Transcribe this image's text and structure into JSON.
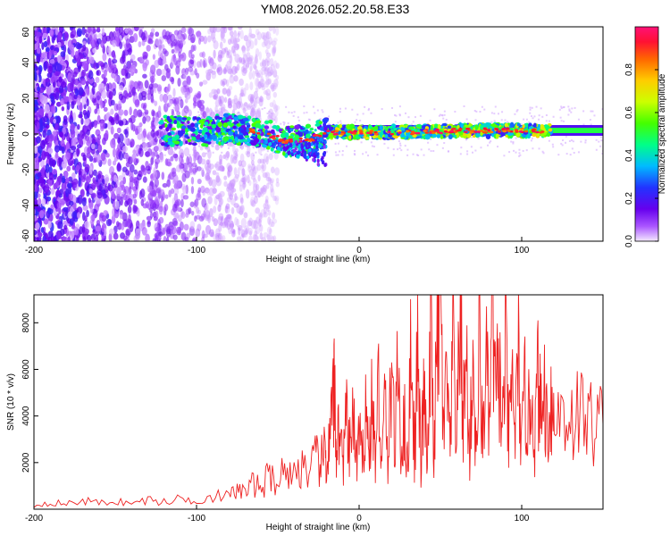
{
  "title": "YM08.2026.052.20.58.E33",
  "chart_data": [
    {
      "type": "heatmap",
      "name": "spectrogram",
      "xlabel": "Height of straight line (km)",
      "ylabel": "Frequency (Hz)",
      "xlim": [
        -200,
        150
      ],
      "ylim": [
        -60,
        60
      ],
      "xticks": [
        -200,
        -100,
        0,
        100
      ],
      "yticks": [
        -60,
        -40,
        -20,
        0,
        20,
        40,
        60
      ],
      "xtick_labels": [
        "-200",
        "-100",
        "0",
        "100"
      ],
      "ytick_labels": [
        "-60",
        "-40",
        "-20",
        "0",
        "20",
        "40",
        "60"
      ],
      "colorbar": {
        "label": "Normalized spectral amplitude",
        "range": [
          0,
          1
        ],
        "ticks": [
          0.0,
          0.2,
          0.4,
          0.6,
          0.8
        ],
        "tick_labels": [
          "0.0",
          "0.2",
          "0.4",
          "0.6",
          "0.8"
        ]
      },
      "features": [
        {
          "kind": "scatter-noise",
          "x_range": [
            -200,
            -70
          ],
          "y_range": [
            -60,
            60
          ],
          "amplitude": 0.1
        },
        {
          "kind": "band",
          "x": [
            -122,
            -100,
            -80,
            -60,
            -45,
            -30,
            -20,
            0,
            30,
            60,
            100,
            118
          ],
          "y": [
            2,
            1,
            3,
            1,
            -4,
            -3,
            1,
            1,
            1,
            2,
            2,
            2
          ],
          "width_hz": 5,
          "amplitude": 1.0
        },
        {
          "kind": "line",
          "x_range": [
            -20,
            150
          ],
          "y": 2,
          "width_hz": 3
        }
      ]
    },
    {
      "type": "line",
      "name": "snr",
      "xlabel": "Height of straight line (km)",
      "ylabel": "SNR (10 * v/v)",
      "xlim": [
        -200,
        150
      ],
      "ylim": [
        0,
        9200
      ],
      "xticks": [
        -200,
        -100,
        0,
        100
      ],
      "yticks": [
        2000,
        4000,
        6000,
        8000
      ],
      "xtick_labels": [
        "-200",
        "-100",
        "0",
        "100"
      ],
      "ytick_labels": [
        "2000",
        "4000",
        "6000",
        "8000"
      ],
      "series": [
        {
          "name": "SNR",
          "color": "#ee2222",
          "x": [
            -200,
            -190,
            -180,
            -170,
            -160,
            -150,
            -140,
            -130,
            -120,
            -110,
            -100,
            -90,
            -80,
            -75,
            -70,
            -65,
            -60,
            -55,
            -50,
            -45,
            -40,
            -35,
            -30,
            -27,
            -24,
            -21,
            -20,
            -18,
            -16,
            -15,
            -14,
            -12,
            -10,
            -8,
            -6,
            -4,
            -2,
            0,
            2,
            4,
            6,
            8,
            10,
            12,
            14,
            16,
            18,
            20,
            22,
            24,
            26,
            28,
            30,
            32,
            34,
            36,
            38,
            40,
            42,
            44,
            46,
            48,
            50,
            52,
            54,
            56,
            58,
            60,
            62,
            64,
            66,
            68,
            70,
            72,
            74,
            76,
            78,
            80,
            82,
            84,
            86,
            88,
            90,
            92,
            94,
            96,
            98,
            100,
            102,
            104,
            106,
            108,
            110,
            112,
            114,
            116,
            118,
            120,
            125,
            130,
            135,
            140,
            145,
            150
          ],
          "values": [
            150,
            300,
            220,
            380,
            260,
            350,
            240,
            400,
            300,
            450,
            380,
            600,
            520,
            850,
            700,
            1100,
            900,
            1500,
            1200,
            1800,
            1400,
            2000,
            1500,
            2200,
            1800,
            2600,
            1700,
            2900,
            4500,
            5000,
            2500,
            3800,
            1800,
            3900,
            2200,
            4300,
            2000,
            3200,
            1800,
            4800,
            2200,
            4600,
            2000,
            5400,
            1700,
            4900,
            1500,
            7300,
            2100,
            6500,
            2400,
            3700,
            1600,
            7900,
            2200,
            6800,
            1800,
            5200,
            1400,
            7700,
            2600,
            6800,
            9300,
            3000,
            5800,
            2100,
            7600,
            2600,
            8800,
            4000,
            6400,
            2200,
            6800,
            1900,
            7300,
            2800,
            6700,
            3200,
            8900,
            4200,
            6600,
            3000,
            7200,
            2800,
            5500,
            3400,
            6400,
            2500,
            5100,
            3600,
            5300,
            2900,
            5700,
            3800,
            5100,
            3400,
            4800,
            3600,
            4400,
            3900,
            4200,
            3700,
            3800,
            3600
          ]
        }
      ]
    }
  ]
}
